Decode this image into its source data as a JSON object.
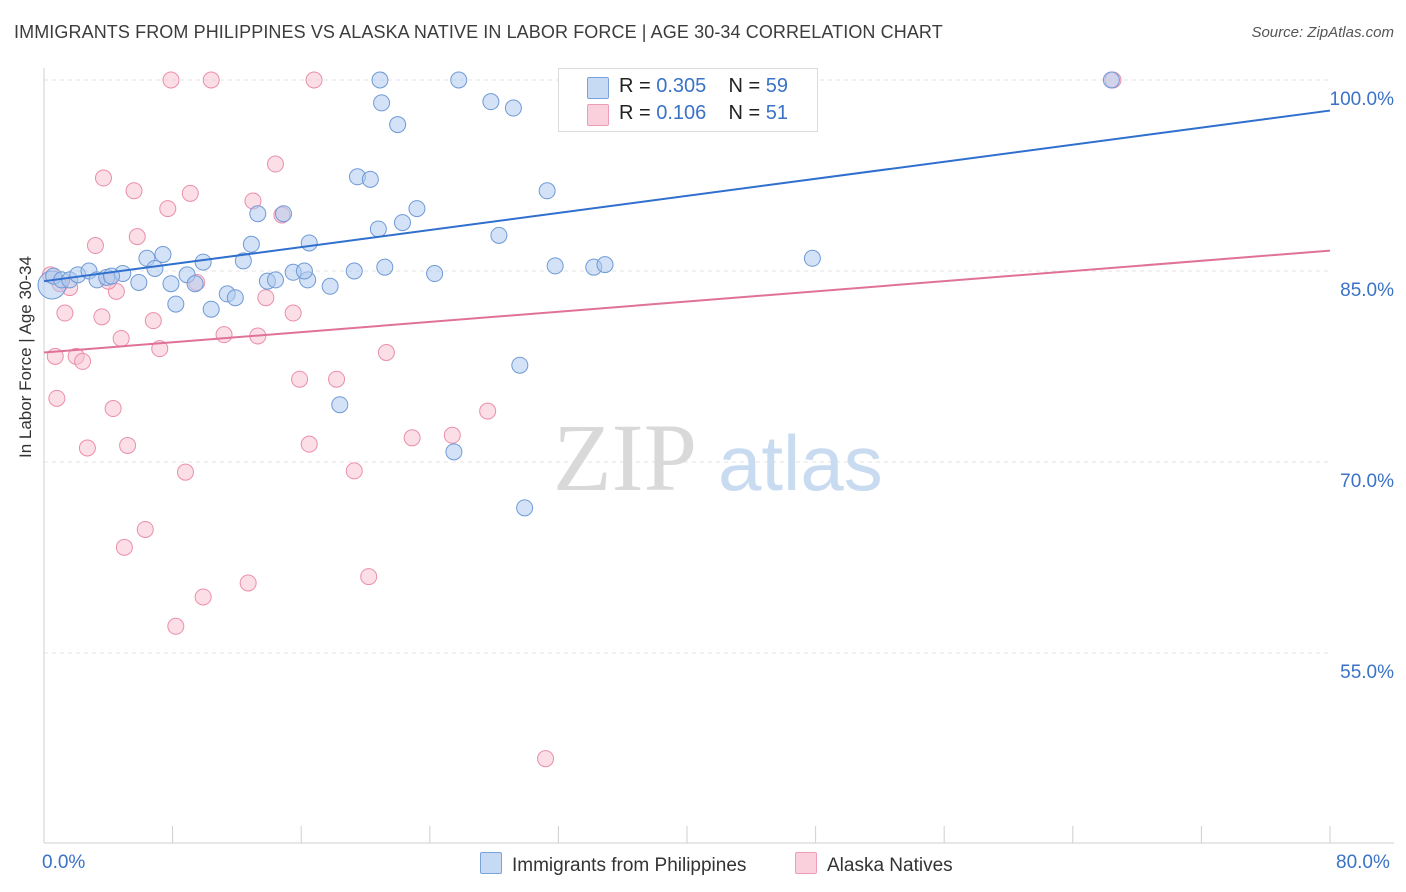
{
  "title": "IMMIGRANTS FROM PHILIPPINES VS ALASKA NATIVE IN LABOR FORCE | AGE 30-34 CORRELATION CHART",
  "source": "Source: ZipAtlas.com",
  "watermark": {
    "zip": "ZIP",
    "atlas": "atlas"
  },
  "legend": {
    "r_label": "R =",
    "n_label": "N =",
    "rows": [
      {
        "r": "0.305",
        "n": "59"
      },
      {
        "r": "0.106",
        "n": "51"
      }
    ]
  },
  "colors": {
    "blue_fill": "#aecbef",
    "blue_stroke": "#6f9ad6",
    "blue_line": "#2f6fce",
    "pink_fill": "#f7c2d2",
    "pink_stroke": "#ea8fab",
    "pink_line": "#e0729a",
    "axis_text": "#3a72c6"
  },
  "chart_data": {
    "type": "scatter",
    "title": "IMMIGRANTS FROM PHILIPPINES VS ALASKA NATIVE IN LABOR FORCE | AGE 30-34 CORRELATION CHART",
    "xlabel": "",
    "ylabel": "In Labor Force | Age 30-34",
    "xlim": [
      0,
      80
    ],
    "ylim": [
      42.0,
      102.0
    ],
    "x_tick_labels": [
      "0.0%",
      "80.0%"
    ],
    "y_ticks": [
      {
        "value": 100,
        "label": "100.0%"
      },
      {
        "value": 85,
        "label": "85.0%"
      },
      {
        "value": 70,
        "label": "70.0%"
      },
      {
        "value": 55,
        "label": "55.0%"
      }
    ],
    "series": [
      {
        "name": "Immigrants from Philippines",
        "color": "blue",
        "trend": {
          "x0": 0,
          "y0": 84.2,
          "x1": 80,
          "y1": 97.6
        },
        "points": [
          [
            0.5,
            83.9
          ],
          [
            0.6,
            84.6
          ],
          [
            1.1,
            84.3
          ],
          [
            1.6,
            84.3
          ],
          [
            2.1,
            84.7
          ],
          [
            2.8,
            85.0
          ],
          [
            3.3,
            84.3
          ],
          [
            3.9,
            84.5
          ],
          [
            4.9,
            84.8
          ],
          [
            5.9,
            84.1
          ],
          [
            6.4,
            86.0
          ],
          [
            6.9,
            85.2
          ],
          [
            7.4,
            86.3
          ],
          [
            7.9,
            84.0
          ],
          [
            8.2,
            82.4
          ],
          [
            8.9,
            84.7
          ],
          [
            9.4,
            84.0
          ],
          [
            9.9,
            85.7
          ],
          [
            10.4,
            82.0
          ],
          [
            11.4,
            83.2
          ],
          [
            11.9,
            82.9
          ],
          [
            12.4,
            85.8
          ],
          [
            12.9,
            87.1
          ],
          [
            13.3,
            89.5
          ],
          [
            13.9,
            84.2
          ],
          [
            14.4,
            84.3
          ],
          [
            14.9,
            89.5
          ],
          [
            15.5,
            84.9
          ],
          [
            16.4,
            84.3
          ],
          [
            16.5,
            87.2
          ],
          [
            17.8,
            83.8
          ],
          [
            19.3,
            85.0
          ],
          [
            18.4,
            74.5
          ],
          [
            19.5,
            92.4
          ],
          [
            20.3,
            92.2
          ],
          [
            20.8,
            88.3
          ],
          [
            20.9,
            100.0
          ],
          [
            21.0,
            98.2
          ],
          [
            22.0,
            96.5
          ],
          [
            22.3,
            88.8
          ],
          [
            23.2,
            89.9
          ],
          [
            24.3,
            84.8
          ],
          [
            25.5,
            70.8
          ],
          [
            25.8,
            100.0
          ],
          [
            27.8,
            98.3
          ],
          [
            28.3,
            87.8
          ],
          [
            29.2,
            97.8
          ],
          [
            29.6,
            77.6
          ],
          [
            29.9,
            66.4
          ],
          [
            31.3,
            91.3
          ],
          [
            31.8,
            85.4
          ],
          [
            33.2,
            100.0
          ],
          [
            34.2,
            85.3
          ],
          [
            34.9,
            85.5
          ],
          [
            47.8,
            86.0
          ],
          [
            66.4,
            100.0
          ],
          [
            21.2,
            85.3
          ],
          [
            16.2,
            85.0
          ],
          [
            4.2,
            84.6
          ]
        ]
      },
      {
        "name": "Alaska Natives",
        "color": "pink",
        "trend": {
          "x0": 0,
          "y0": 78.6,
          "x1": 80,
          "y1": 86.6
        },
        "points": [
          [
            0.4,
            84.7
          ],
          [
            0.7,
            78.3
          ],
          [
            0.8,
            75.0
          ],
          [
            1.3,
            81.7
          ],
          [
            1.6,
            83.7
          ],
          [
            2.0,
            78.3
          ],
          [
            2.4,
            77.9
          ],
          [
            2.7,
            71.1
          ],
          [
            3.2,
            87.0
          ],
          [
            3.6,
            81.4
          ],
          [
            3.7,
            92.3
          ],
          [
            4.3,
            74.2
          ],
          [
            4.5,
            83.4
          ],
          [
            4.8,
            79.7
          ],
          [
            5.0,
            63.3
          ],
          [
            5.2,
            71.3
          ],
          [
            5.6,
            91.3
          ],
          [
            5.8,
            87.7
          ],
          [
            6.3,
            64.7
          ],
          [
            6.8,
            81.1
          ],
          [
            7.2,
            78.9
          ],
          [
            7.7,
            89.9
          ],
          [
            8.2,
            57.1
          ],
          [
            8.8,
            69.2
          ],
          [
            9.1,
            91.1
          ],
          [
            9.5,
            84.1
          ],
          [
            9.9,
            59.4
          ],
          [
            10.4,
            100.0
          ],
          [
            11.2,
            80.0
          ],
          [
            12.7,
            60.5
          ],
          [
            13.0,
            90.5
          ],
          [
            13.3,
            79.9
          ],
          [
            13.8,
            82.9
          ],
          [
            14.4,
            93.4
          ],
          [
            14.8,
            89.4
          ],
          [
            15.5,
            81.7
          ],
          [
            15.9,
            76.5
          ],
          [
            16.5,
            71.4
          ],
          [
            16.8,
            100.0
          ],
          [
            18.2,
            76.5
          ],
          [
            19.3,
            69.3
          ],
          [
            20.2,
            61.0
          ],
          [
            21.3,
            78.6
          ],
          [
            22.9,
            71.9
          ],
          [
            25.4,
            72.1
          ],
          [
            27.6,
            74.0
          ],
          [
            31.2,
            46.7
          ],
          [
            7.9,
            100.0
          ],
          [
            66.5,
            100.0
          ],
          [
            4.0,
            84.2
          ],
          [
            1.0,
            84.0
          ]
        ]
      }
    ]
  },
  "bottom_legend": {
    "items": [
      {
        "label": "Immigrants from Philippines"
      },
      {
        "label": "Alaska Natives"
      }
    ]
  }
}
